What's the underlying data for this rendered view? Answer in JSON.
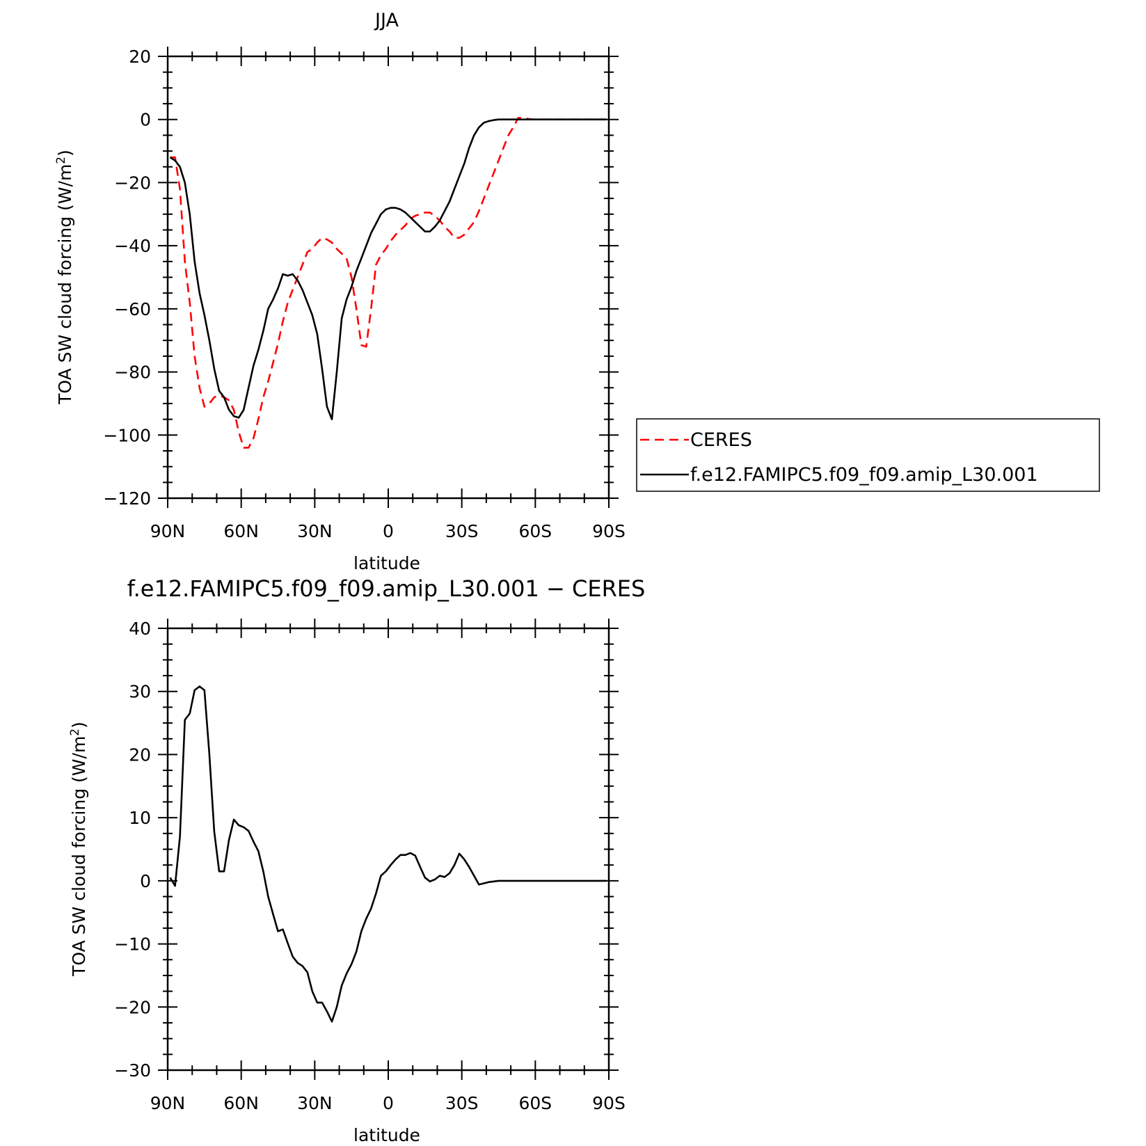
{
  "chart_data": [
    {
      "type": "line",
      "title": "JJA",
      "xlabel": "latitude",
      "ylabel": "TOA SW cloud forcing (W/m²)",
      "ylabel_main": "TOA SW cloud forcing (W/m",
      "ylabel_sup": "2",
      "ylabel_end": ")",
      "xlim": [
        90,
        -90
      ],
      "ylim": [
        -120,
        20
      ],
      "x_tick_values": [
        90,
        60,
        30,
        0,
        -30,
        -60,
        -90
      ],
      "x_tick_labels": [
        "90N",
        "60N",
        "30N",
        "0",
        "30S",
        "60S",
        "90S"
      ],
      "y_tick_values": [
        20,
        0,
        -20,
        -40,
        -60,
        -80,
        -100,
        -120
      ],
      "y_tick_labels": [
        "20",
        "0",
        "−20",
        "−40",
        "−60",
        "−80",
        "−100",
        "−120"
      ],
      "legend": {
        "placement": "right",
        "entries": [
          {
            "label": "CERES",
            "color": "#ff0000",
            "dash": true
          },
          {
            "label": "f.e12.FAMIPC5.f09_f09.amip_L30.001",
            "color": "#000000",
            "dash": false
          }
        ]
      },
      "series": [
        {
          "name": "CERES",
          "color": "#ff0000",
          "dashed": true,
          "x": [
            89,
            87,
            85,
            83,
            81,
            79,
            77,
            75,
            73,
            71,
            69,
            67,
            65,
            63,
            61,
            59,
            57,
            55,
            53,
            51,
            49,
            47,
            45,
            43,
            41,
            39,
            37,
            35,
            33,
            31,
            29,
            27,
            25,
            23,
            21,
            19,
            17,
            15,
            13,
            11,
            9,
            7,
            5,
            3,
            1,
            -1,
            -3,
            -5,
            -7,
            -9,
            -11,
            -13,
            -15,
            -17,
            -19,
            -21,
            -23,
            -25,
            -27,
            -29,
            -31,
            -33,
            -35,
            -37,
            -39,
            -41,
            -43,
            -45,
            -47,
            -49,
            -51,
            -53,
            -55,
            -57,
            -59,
            -61,
            -63,
            -65,
            -67,
            -69,
            -71,
            -73,
            -75,
            -77,
            -79,
            -81,
            -83,
            -85,
            -87,
            -89
          ],
          "y": [
            -12,
            -12,
            -22,
            -45,
            -58,
            -75,
            -85,
            -91,
            -90,
            -88,
            -87.5,
            -88,
            -89,
            -92,
            -99,
            -104,
            -104,
            -101,
            -95,
            -88,
            -83,
            -77,
            -71,
            -64,
            -58,
            -54,
            -50,
            -46,
            -42,
            -41,
            -39,
            -37.5,
            -38,
            -39,
            -41,
            -42.5,
            -44,
            -50,
            -60,
            -71.5,
            -72,
            -60,
            -46,
            -43,
            -41,
            -38.5,
            -36.5,
            -35,
            -33.5,
            -31.5,
            -30.5,
            -30,
            -29.5,
            -29.5,
            -30.5,
            -32,
            -34,
            -35.5,
            -37.5,
            -37.5,
            -36.5,
            -34.5,
            -32.5,
            -29,
            -25,
            -21,
            -17,
            -13,
            -9,
            -5,
            -2.5,
            0.5,
            0.5,
            0.2,
            0,
            0,
            0,
            0,
            0,
            0,
            0,
            0,
            0,
            0,
            0,
            0,
            0,
            0,
            0,
            0
          ]
        },
        {
          "name": "f.e12.FAMIPC5.f09_f09.amip_L30.001",
          "color": "#000000",
          "dashed": false,
          "x": [
            89,
            87,
            85,
            83,
            81,
            79,
            77,
            75,
            73,
            71,
            69,
            67,
            65,
            63,
            61,
            59,
            57,
            55,
            53,
            51,
            49,
            47,
            45,
            43,
            41,
            39,
            37,
            35,
            33,
            31,
            29,
            27,
            25,
            23,
            21,
            19,
            17,
            15,
            13,
            11,
            9,
            7,
            5,
            3,
            1,
            -1,
            -3,
            -5,
            -7,
            -9,
            -11,
            -13,
            -15,
            -17,
            -19,
            -21,
            -23,
            -25,
            -27,
            -29,
            -31,
            -33,
            -35,
            -37,
            -39,
            -41,
            -43,
            -45,
            -47,
            -49,
            -51,
            -53,
            -55,
            -57,
            -59,
            -61,
            -63,
            -65,
            -67,
            -69,
            -71,
            -73,
            -75,
            -77,
            -79,
            -81,
            -83,
            -85,
            -87,
            -89
          ],
          "y": [
            -12,
            -13,
            -15,
            -20,
            -30,
            -45,
            -55,
            -62,
            -70,
            -79,
            -86,
            -88,
            -92,
            -94,
            -94.5,
            -92,
            -85,
            -78,
            -73,
            -67,
            -60,
            -57,
            -53.5,
            -49,
            -49.5,
            -49,
            -51,
            -54,
            -58,
            -62,
            -68,
            -79,
            -91,
            -95,
            -80,
            -63,
            -57,
            -53,
            -48,
            -44,
            -40,
            -36,
            -33,
            -30,
            -28.5,
            -28,
            -28,
            -28.5,
            -29.5,
            -31,
            -32.5,
            -34,
            -35.5,
            -35.5,
            -34,
            -32,
            -29,
            -26,
            -22,
            -18,
            -14,
            -9,
            -5,
            -2.5,
            -1,
            -0.5,
            -0.2,
            0,
            0,
            0,
            0,
            0,
            0,
            0,
            0,
            0,
            0,
            0,
            0,
            0,
            0,
            0,
            0,
            0,
            0,
            0,
            0,
            0,
            0,
            0
          ]
        }
      ]
    },
    {
      "type": "line",
      "title": "f.e12.FAMIPC5.f09_f09.amip_L30.001 − CERES",
      "xlabel": "latitude",
      "ylabel": "TOA SW cloud forcing (W/m²)",
      "ylabel_main": "TOA SW cloud forcing (W/m",
      "ylabel_sup": "2",
      "ylabel_end": ")",
      "xlim": [
        90,
        -90
      ],
      "ylim": [
        -30,
        40
      ],
      "x_tick_values": [
        90,
        60,
        30,
        0,
        -30,
        -60,
        -90
      ],
      "x_tick_labels": [
        "90N",
        "60N",
        "30N",
        "0",
        "30S",
        "60S",
        "90S"
      ],
      "y_tick_values": [
        40,
        30,
        20,
        10,
        0,
        -10,
        -20,
        -30
      ],
      "y_tick_labels": [
        "40",
        "30",
        "20",
        "10",
        "0",
        "−10",
        "−20",
        "−30"
      ],
      "series": [
        {
          "color": "#000000",
          "dashed": false,
          "x": [
            89,
            87,
            85,
            83,
            81,
            79,
            77,
            75,
            73,
            71,
            69,
            67,
            65,
            63,
            61,
            59,
            57,
            55,
            53,
            51,
            49,
            47,
            45,
            43,
            41,
            39,
            37,
            35,
            33,
            31,
            29,
            27,
            25,
            23,
            21,
            19,
            17,
            15,
            13,
            11,
            9,
            7,
            5,
            3,
            1,
            -1,
            -3,
            -5,
            -7,
            -9,
            -11,
            -13,
            -15,
            -17,
            -19,
            -21,
            -23,
            -25,
            -27,
            -29,
            -31,
            -33,
            -35,
            -37,
            -39,
            -41,
            -43,
            -45,
            -47,
            -49,
            -51,
            -53,
            -55,
            -57,
            -59,
            -61,
            -63,
            -65,
            -67,
            -69,
            -71,
            -73,
            -75,
            -77,
            -79,
            -81,
            -83,
            -85,
            -87,
            -89
          ],
          "y": [
            0.5,
            -0.8,
            7,
            25.5,
            26.5,
            30.2,
            30.8,
            30.2,
            20,
            7.8,
            1.5,
            1.5,
            6.5,
            9.7,
            8.8,
            8.5,
            7.9,
            6.2,
            4.7,
            1.5,
            -2.5,
            -5.3,
            -8,
            -7.7,
            -9.9,
            -12,
            -13,
            -13.5,
            -14.5,
            -17.5,
            -19.3,
            -19.3,
            -20.7,
            -22.3,
            -20,
            -16.6,
            -14.7,
            -13.2,
            -11.2,
            -8,
            -6,
            -4.4,
            -2,
            0.8,
            1.5,
            2.5,
            3.4,
            4.1,
            4.1,
            4.4,
            4,
            2.2,
            0.5,
            -0.1,
            0.2,
            0.8,
            0.6,
            1.2,
            2.5,
            4.3,
            3.4,
            2.2,
            0.8,
            -0.6,
            -0.4,
            -0.2,
            -0.1,
            0,
            0,
            0,
            0,
            0,
            0,
            0,
            0,
            0,
            0,
            0,
            0,
            0,
            0,
            0,
            0,
            0,
            0,
            0,
            0,
            0,
            0,
            0
          ]
        }
      ]
    }
  ]
}
